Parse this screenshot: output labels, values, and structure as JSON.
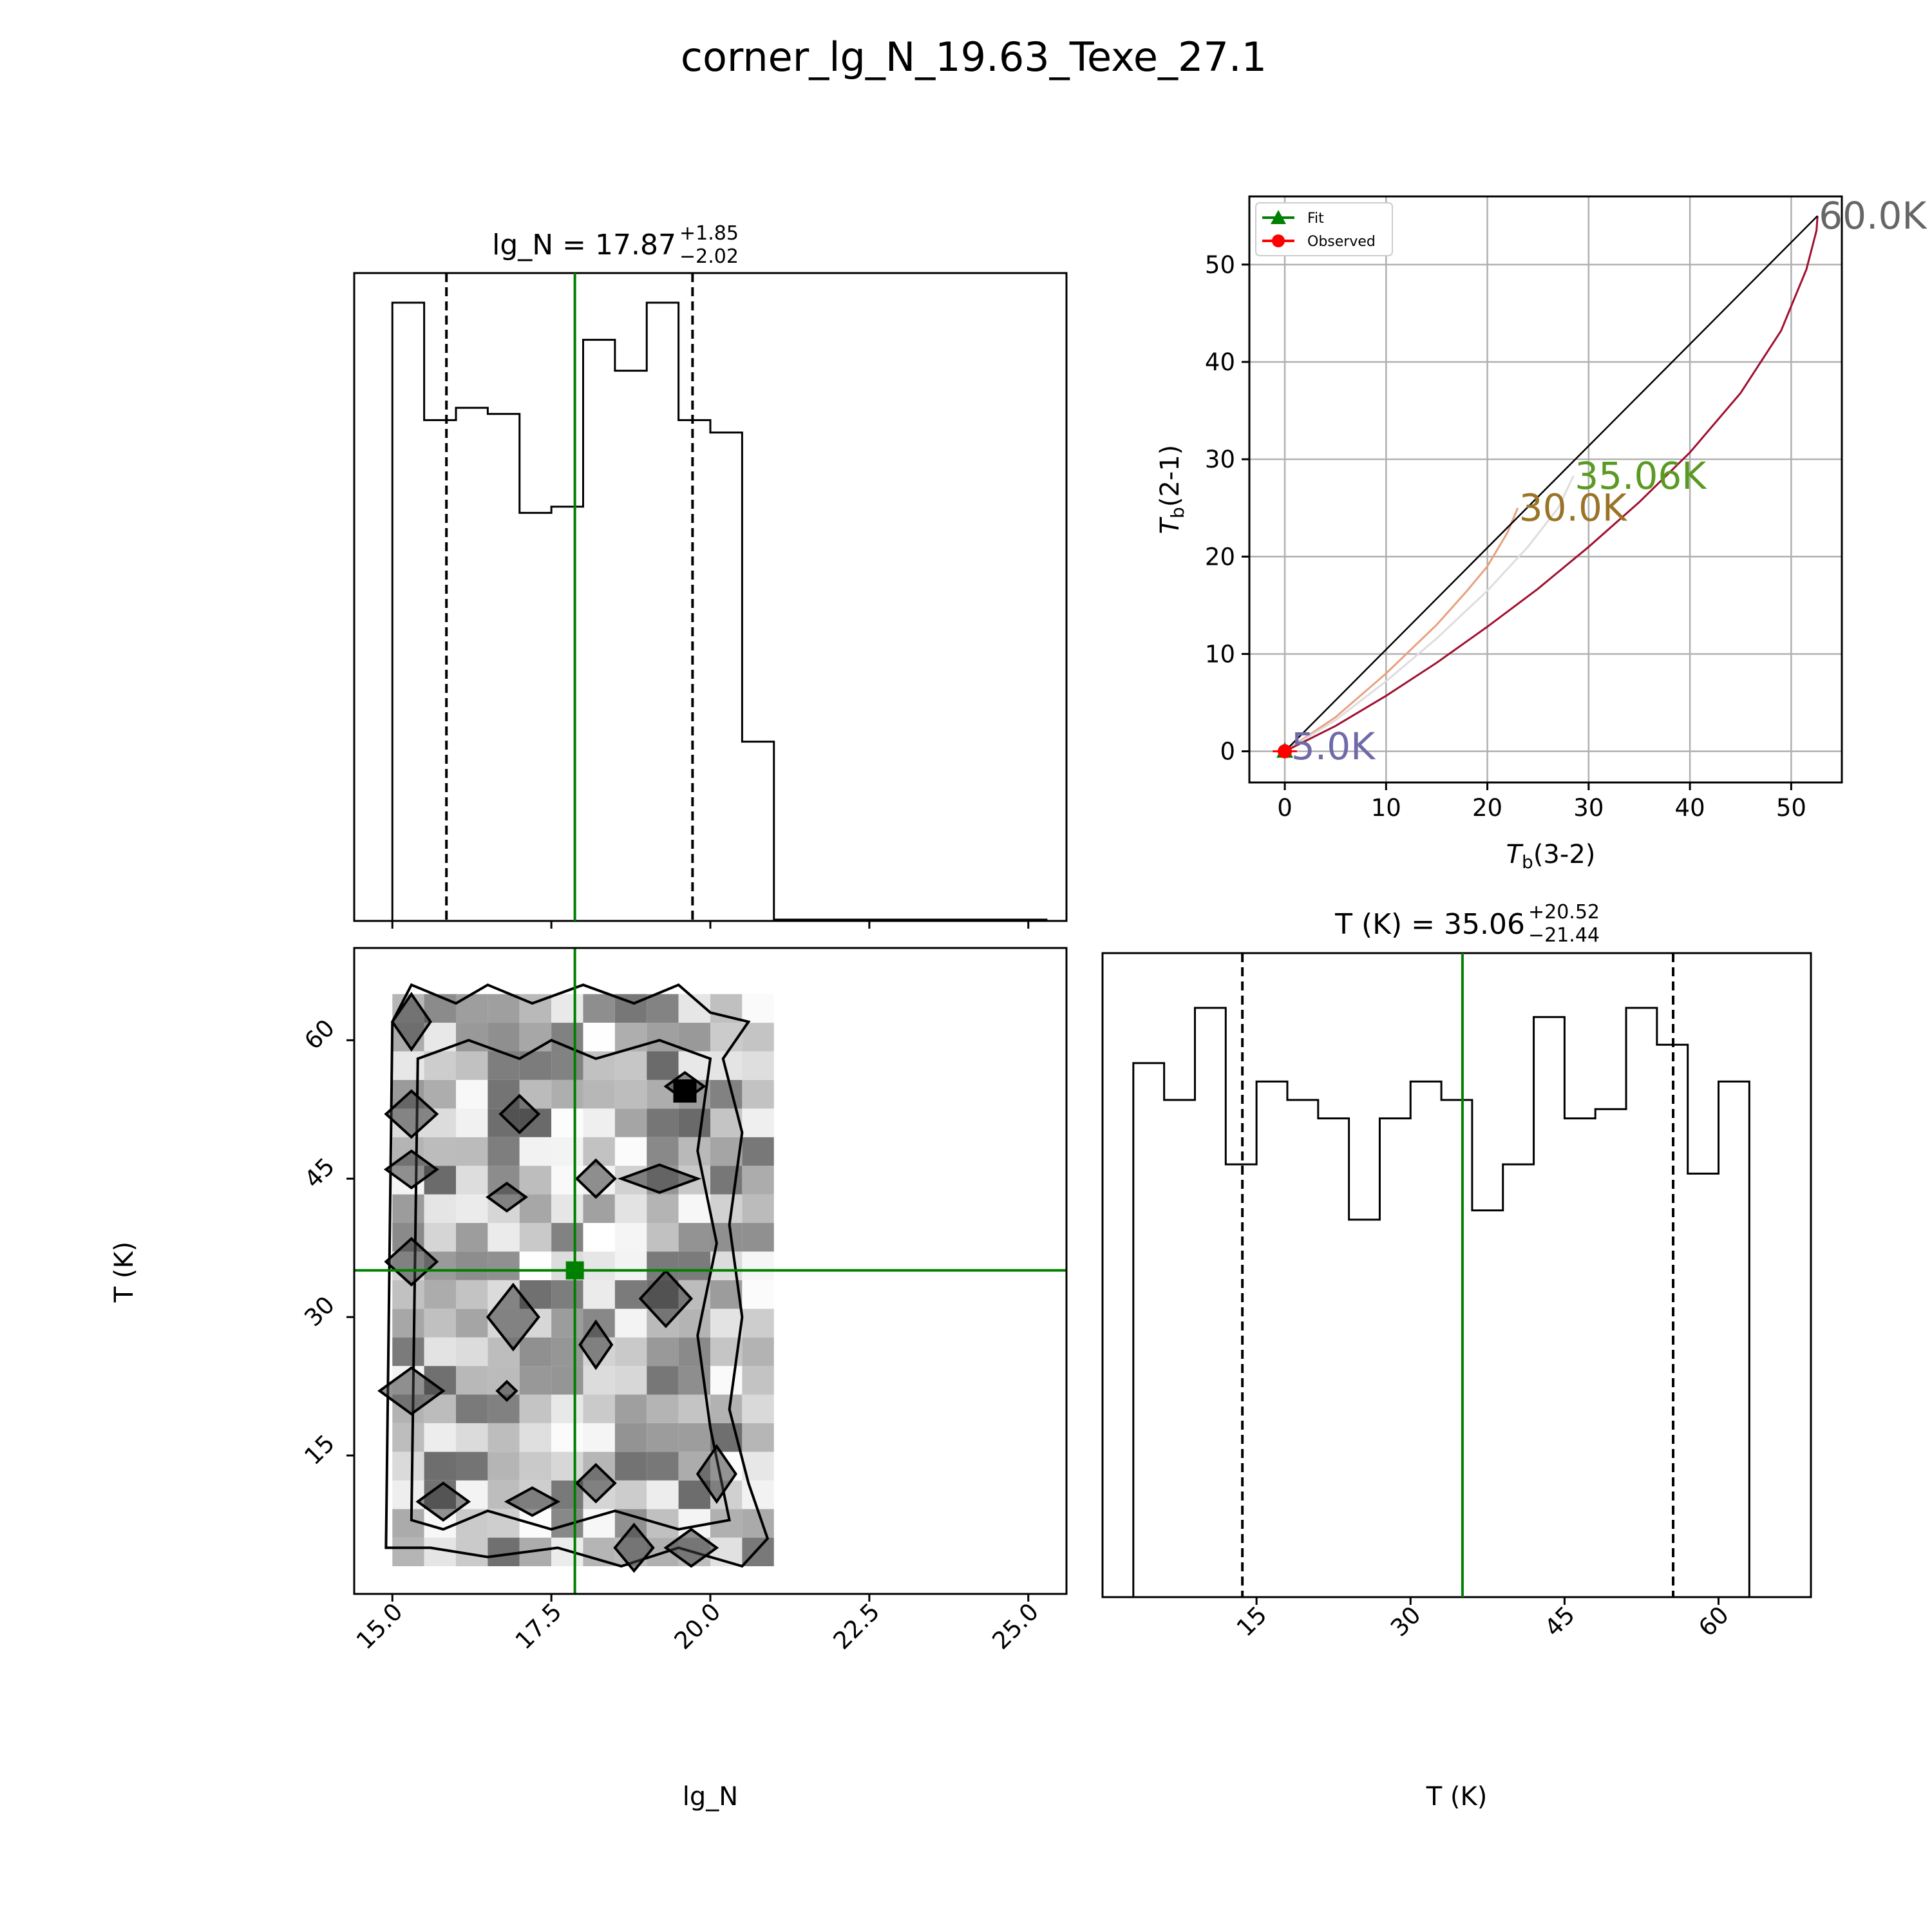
{
  "figure_title": "corner_lg_N_19.63_Texe_27.1",
  "colors": {
    "fit": "#008000",
    "observed": "#ff0000",
    "quantile": "#000000",
    "grid": "#b0b0b0"
  },
  "chart_data": [
    {
      "id": "hist_lgN",
      "type": "histogram",
      "title_main": "lg_N = 17.87",
      "title_sup": "+1.85",
      "title_sub": "−2.02",
      "xlim": [
        14.4,
        25.6
      ],
      "xticks": [
        15.0,
        17.5,
        20.0,
        22.5,
        25.0
      ],
      "bin_edges": [
        15.0,
        15.5,
        16.0,
        16.5,
        17.0,
        17.5,
        18.0,
        18.5,
        19.0,
        19.5,
        20.0,
        20.5,
        21.0,
        25.3
      ],
      "counts": [
        100,
        81,
        83,
        82,
        66,
        67,
        94,
        89,
        100,
        81,
        79,
        29,
        0
      ],
      "fit_value": 17.87,
      "quantiles": [
        15.85,
        19.72
      ]
    },
    {
      "id": "lineratio",
      "type": "line",
      "xlabel": "T_b(3-2)",
      "ylabel": "T_b(2-1)",
      "xlim": [
        -3.5,
        55
      ],
      "ylim": [
        -3.2,
        57
      ],
      "xticks": [
        0,
        10,
        20,
        30,
        40,
        50
      ],
      "yticks": [
        0,
        10,
        20,
        30,
        40,
        50
      ],
      "grid": true,
      "legend": {
        "location": "top-left",
        "entries": [
          "Fit",
          "Observed"
        ]
      },
      "series": [
        {
          "name": "T=5.0K",
          "label": "5.0K",
          "color": "#6f6aa8",
          "x": [
            0,
            0.2,
            0.5
          ],
          "y": [
            0,
            0.2,
            0.5
          ]
        },
        {
          "name": "T=30.0K",
          "label": "30.0K",
          "color": "#e8a07e",
          "x": [
            0,
            5,
            10,
            15,
            18,
            20,
            22,
            23
          ],
          "y": [
            0,
            3.5,
            8,
            13,
            16.5,
            19,
            22.5,
            25
          ]
        },
        {
          "name": "T=35.06K",
          "label": "35.06K",
          "color": "#dddddd",
          "x": [
            0,
            5,
            10,
            15,
            20,
            24,
            27,
            28.5
          ],
          "y": [
            0,
            3.2,
            7.2,
            11.6,
            16.5,
            21,
            25,
            28.3
          ]
        },
        {
          "name": "T=60.0K",
          "label": "60.0K",
          "color": "#a01030",
          "x": [
            0,
            5,
            10,
            15,
            20,
            25,
            30,
            35,
            40,
            45,
            49,
            51.5,
            52.5,
            52.6
          ],
          "y": [
            0,
            2.6,
            5.7,
            9.1,
            12.8,
            16.7,
            21,
            25.6,
            30.7,
            36.8,
            43.2,
            49.5,
            53.5,
            55
          ]
        },
        {
          "name": "thin limit",
          "label": "",
          "color": "#000000",
          "x": [
            0,
            52.6
          ],
          "y": [
            0,
            55
          ]
        }
      ],
      "label_colors": {
        "5.0K": "#6f6aa8",
        "30.0K": "#9b7326",
        "35.06K": "#5a9a22",
        "60.0K": "#666666"
      },
      "fit_point": [
        0,
        0
      ],
      "observed_point": [
        0,
        0
      ]
    },
    {
      "id": "hist2d",
      "type": "heatmap",
      "xlabel": "lg_N",
      "ylabel": "T (K)",
      "xlim": [
        14.4,
        25.6
      ],
      "ylim": [
        0,
        70
      ],
      "xticks": [
        15.0,
        17.5,
        20.0,
        22.5,
        25.0
      ],
      "yticks": [
        15,
        30,
        45,
        60
      ],
      "fit_point": [
        17.87,
        35.06
      ],
      "density_note": "2D posterior density, samples within lg_N 14.8-21, T 3-65"
    },
    {
      "id": "hist_T",
      "type": "histogram",
      "title_main": "T (K) = 35.06",
      "title_sup": "+20.52",
      "title_sub": "−21.44",
      "xlim": [
        0,
        69
      ],
      "xticks": [
        15,
        30,
        45,
        60
      ],
      "bin_edges": [
        3,
        6,
        9,
        12,
        15,
        18,
        21,
        24,
        27,
        30,
        33,
        36,
        39,
        42,
        45,
        48,
        51,
        54,
        57,
        60,
        63,
        66
      ],
      "counts": [
        58,
        54,
        64,
        47,
        56,
        54,
        52,
        41,
        52,
        56,
        54,
        42,
        47,
        63,
        52,
        53,
        64,
        60,
        46,
        56,
        0
      ],
      "fit_value": 35.06,
      "quantiles": [
        13.62,
        55.58
      ]
    }
  ]
}
